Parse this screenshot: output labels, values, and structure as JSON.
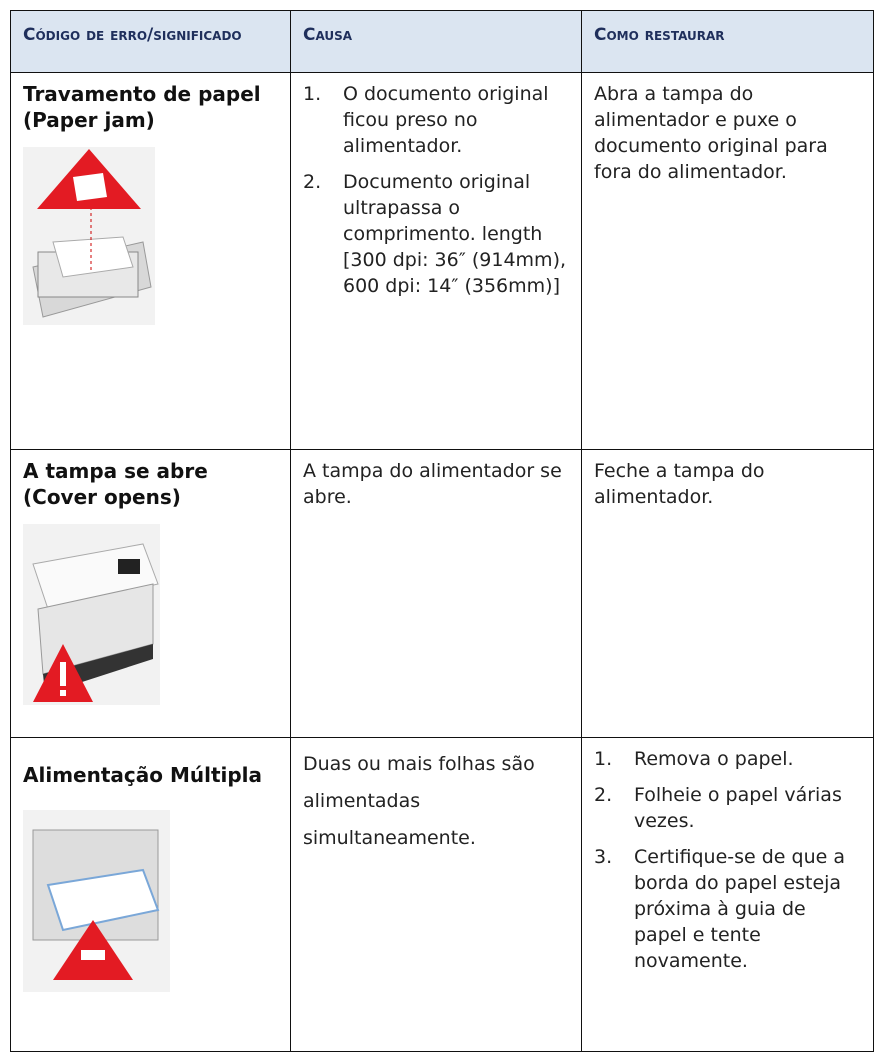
{
  "table": {
    "headers": [
      "Código de erro/significado",
      "Causa",
      "Como restaurar"
    ],
    "rows": [
      {
        "code": "Travamento de papel (Paper jam)",
        "cause": [
          {
            "num": "1.",
            "text": "O documento original ficou preso no alimentador."
          },
          {
            "num": "2.",
            "text": "Documento original ultrapassa o comprimento. length [300 dpi: 36″ (914mm), 600 dpi: 14″ (356mm)]"
          }
        ],
        "restore": "Abra a tampa do alimentador e puxe o documento original para fora do alimentador."
      },
      {
        "code": "A tampa se abre (Cover opens)",
        "cause": "A tampa do alimentador se abre.",
        "restore": "Feche a tampa do alimentador."
      },
      {
        "code": "Alimentação Múltipla",
        "cause": "Duas ou mais folhas são alimentadas simultaneamente.",
        "restore": [
          {
            "num": "1.",
            "text": "Remova o papel."
          },
          {
            "num": "2.",
            "text": "Folheie o papel várias vezes."
          },
          {
            "num": "3.",
            "text": "Certifique-se de que a borda do papel esteja próxima à guia de papel e tente novamente."
          }
        ]
      }
    ]
  }
}
